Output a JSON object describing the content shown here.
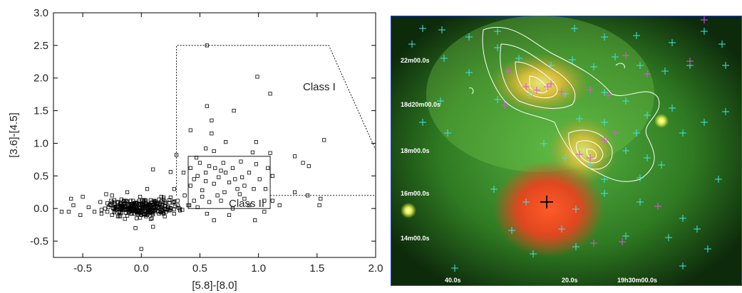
{
  "chart_data": [
    {
      "type": "scatter",
      "title": "",
      "xlabel": "[5.8]-[8.0]",
      "ylabel": "[3.6]-[4.5]",
      "xlim": [
        -0.75,
        2.0
      ],
      "ylim": [
        -0.75,
        3.0
      ],
      "xticks": [
        "-0.5",
        "0.0",
        "0.5",
        "1.0",
        "1.5",
        "2.0"
      ],
      "xtick_values": [
        -0.5,
        0.0,
        0.5,
        1.0,
        1.5,
        2.0
      ],
      "yticks": [
        "-0.5",
        "0.0",
        "0.5",
        "1.0",
        "1.5",
        "2.0",
        "2.5",
        "3.0"
      ],
      "ytick_values": [
        -0.5,
        0.0,
        0.5,
        1.0,
        1.5,
        2.0,
        2.5,
        3.0
      ],
      "grid": false,
      "marker": "open-square",
      "series": [
        {
          "points": [
            [
              0.56,
              2.5
            ],
            [
              0.99,
              2.02
            ],
            [
              1.1,
              1.76
            ],
            [
              0.56,
              1.57
            ],
            [
              0.79,
              1.5
            ],
            [
              0.6,
              1.35
            ],
            [
              0.42,
              1.2
            ],
            [
              0.6,
              1.15
            ],
            [
              1.56,
              1.05
            ],
            [
              0.72,
              1.02
            ],
            [
              0.98,
              1.02
            ],
            [
              0.55,
              0.92
            ],
            [
              0.62,
              0.88
            ],
            [
              0.95,
              0.86
            ],
            [
              1.1,
              0.85
            ],
            [
              0.3,
              0.82
            ],
            [
              1.31,
              0.8
            ],
            [
              0.47,
              0.78
            ],
            [
              1.38,
              0.7
            ],
            [
              0.85,
              0.72
            ],
            [
              0.7,
              0.7
            ],
            [
              0.58,
              0.65
            ],
            [
              1.43,
              0.65
            ],
            [
              0.1,
              0.6
            ],
            [
              0.25,
              0.56
            ],
            [
              0.36,
              0.55
            ],
            [
              0.68,
              0.58
            ],
            [
              0.92,
              0.55
            ],
            [
              1.12,
              0.5
            ],
            [
              0.48,
              0.5
            ],
            [
              0.8,
              0.45
            ],
            [
              1.01,
              0.45
            ],
            [
              0.55,
              0.42
            ],
            [
              0.75,
              0.4
            ],
            [
              0.62,
              0.38
            ],
            [
              0.88,
              0.35
            ],
            [
              0.42,
              0.35
            ],
            [
              0.96,
              0.3
            ],
            [
              1.06,
              0.3
            ],
            [
              0.28,
              0.3
            ],
            [
              0.52,
              0.28
            ],
            [
              0.71,
              0.25
            ],
            [
              0.84,
              0.22
            ],
            [
              1.31,
              0.25
            ],
            [
              1.42,
              0.2
            ],
            [
              1.53,
              0.15
            ],
            [
              0.65,
              0.2
            ],
            [
              0.37,
              0.2
            ],
            [
              1.12,
              0.12
            ],
            [
              0.58,
              0.1
            ],
            [
              1.18,
              0.05
            ],
            [
              1.52,
              0.05
            ],
            [
              0.48,
              0.02
            ],
            [
              0.78,
              0.0
            ],
            [
              0.56,
              -0.08
            ],
            [
              1.05,
              -0.05
            ],
            [
              0.75,
              -0.1
            ],
            [
              0.62,
              -0.18
            ],
            [
              0.97,
              -0.18
            ],
            [
              0.23,
              0.02
            ],
            [
              0.17,
              0.18
            ],
            [
              0.31,
              0.12
            ],
            [
              -0.25,
              0.2
            ],
            [
              -0.12,
              0.25
            ],
            [
              0.05,
              0.3
            ],
            [
              0.0,
              -0.62
            ],
            [
              0.1,
              -0.28
            ],
            [
              -0.05,
              -0.3
            ],
            [
              -0.2,
              -0.12
            ],
            [
              -0.35,
              0.1
            ],
            [
              -0.45,
              0.02
            ],
            [
              -0.58,
              0.05
            ],
            [
              -0.62,
              -0.05
            ],
            [
              -0.52,
              -0.1
            ],
            [
              -0.4,
              -0.05
            ],
            [
              -0.68,
              -0.05
            ],
            [
              -0.6,
              0.15
            ],
            [
              -0.5,
              0.18
            ],
            [
              -0.3,
              0.22
            ],
            [
              0.12,
              0.08
            ],
            [
              0.2,
              -0.12
            ],
            [
              0.28,
              -0.08
            ],
            [
              0.35,
              -0.02
            ],
            [
              0.4,
              0.05
            ],
            [
              0.45,
              0.12
            ],
            [
              0.52,
              0.18
            ],
            [
              0.68,
              0.12
            ],
            [
              0.88,
              0.15
            ],
            [
              0.92,
              0.05
            ],
            [
              1.05,
              0.12
            ],
            [
              0.42,
              0.62
            ],
            [
              0.5,
              0.7
            ],
            [
              0.66,
              0.48
            ],
            [
              0.72,
              0.55
            ],
            [
              0.78,
              0.62
            ],
            [
              0.86,
              0.48
            ],
            [
              0.55,
              0.55
            ],
            [
              0.63,
              0.62
            ],
            [
              0.45,
              0.45
            ],
            [
              1.08,
              0.62
            ],
            [
              0.98,
              0.68
            ],
            [
              0.82,
              0.3
            ]
          ]
        }
      ],
      "annotations": [
        {
          "text": "Class I",
          "x": 1.42,
          "y": 1.8
        },
        {
          "text": "Class II",
          "x": 0.93,
          "y": 0.05
        }
      ],
      "regions": [
        {
          "label": "Class I",
          "polyline": [
            [
              0.3,
              0.2
            ],
            [
              0.3,
              2.5
            ],
            [
              1.6,
              2.5
            ],
            [
              2.0,
              0.9
            ]
          ]
        },
        {
          "label": "Class I",
          "polyline": [
            [
              1.1,
              0.2
            ],
            [
              2.0,
              0.2
            ]
          ]
        },
        {
          "label": "Class II",
          "rect": [
            [
              0.4,
              0.0
            ],
            [
              1.1,
              0.8
            ]
          ]
        }
      ]
    }
  ],
  "image_panel": {
    "ra_labels": [
      "40.0s",
      "20.0s",
      "19h30m00.0s"
    ],
    "dec_labels": [
      "22m00.0s",
      "18d20m00.0s",
      "18m00.0s",
      "16m00.0s",
      "14m00.0s"
    ]
  }
}
